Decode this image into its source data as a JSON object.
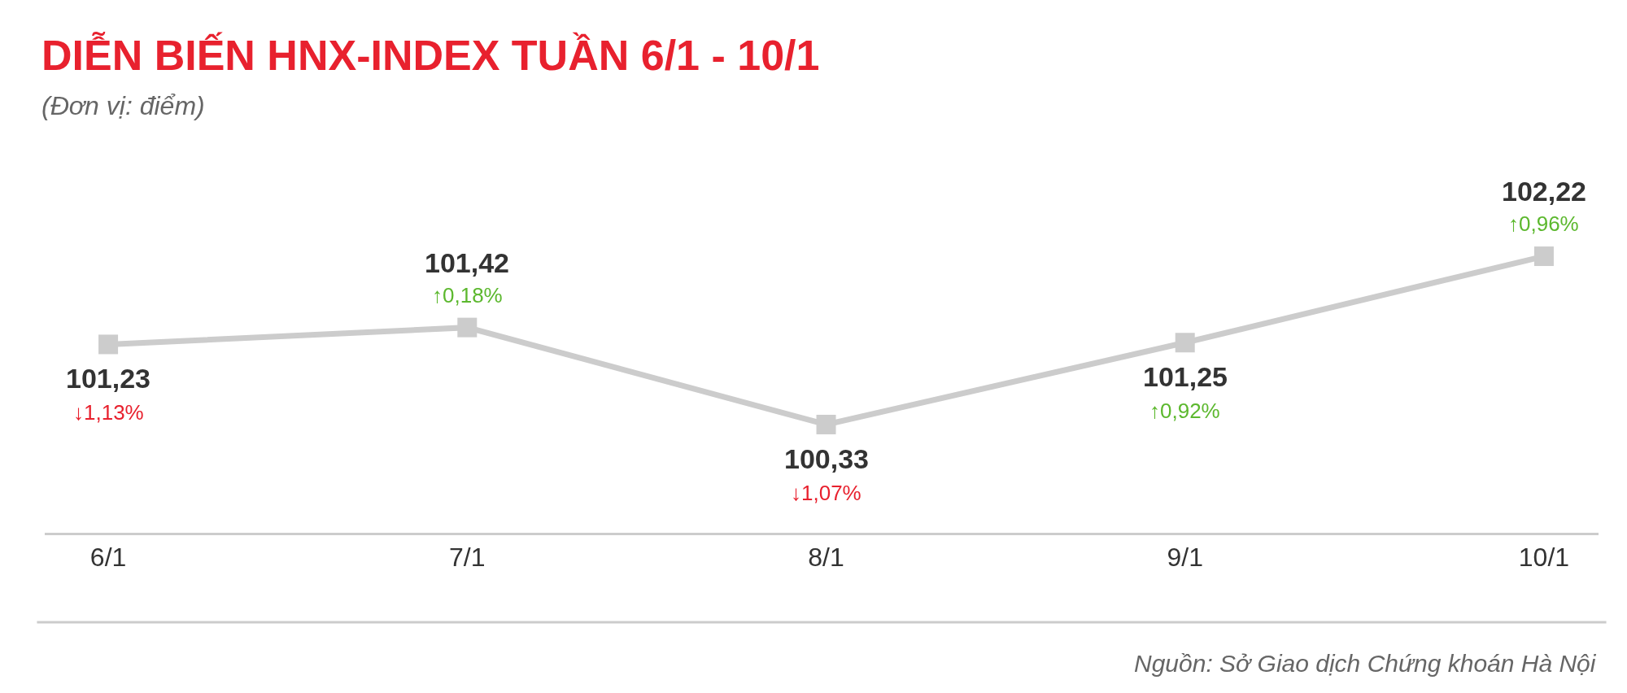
{
  "chart_data": {
    "type": "line",
    "title": "DIỄN BIẾN HNX-INDEX TUẦN 6/1 - 10/1",
    "subtitle": "(Đơn vị: điểm)",
    "categories": [
      "6/1",
      "7/1",
      "8/1",
      "9/1",
      "10/1"
    ],
    "series": [
      {
        "color": "#cccccc",
        "values": [
          101.23,
          101.42,
          100.33,
          101.25,
          102.22
        ],
        "value_labels": [
          "101,23",
          "101,42",
          "100,33",
          "101,25",
          "102,22"
        ]
      }
    ],
    "marker": "square",
    "line_style": "solid",
    "legend": false,
    "tick_labels": "x",
    "annotations": [
      {
        "text": "↓1,13%",
        "x": "6/1",
        "y": 101.23
      },
      {
        "text": "↑0,18%",
        "x": "7/1",
        "y": 101.42
      },
      {
        "text": "↓1,07%",
        "x": "8/1",
        "y": 100.33
      },
      {
        "text": "↑0,92%",
        "x": "9/1",
        "y": 101.25
      },
      {
        "text": "↑0,96%",
        "x": "10/1",
        "y": 102.22
      },
      "Nguồn: Sở Giao dịch Chứng khoán Hà Nội"
    ]
  }
}
